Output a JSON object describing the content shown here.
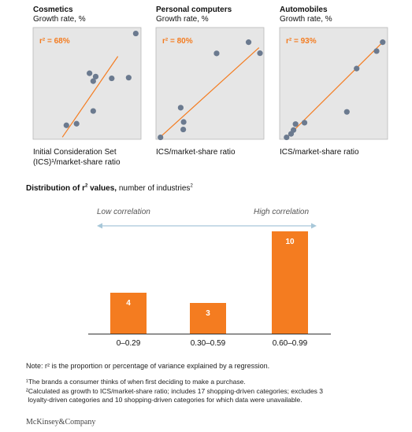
{
  "colors": {
    "accent": "#f47c20",
    "panel_bg": "#e6e6e6",
    "point": "#6b7a8f",
    "bar": "#f47c20",
    "arrow": "#a7c7d9"
  },
  "chart_data": [
    {
      "type": "scatter",
      "title": "Cosmetics",
      "subtitle": "Growth rate, %",
      "xlabel_lines": [
        "Initial Consideration Set",
        "(ICS)¹/market-share ratio"
      ],
      "r2_label": "r² = 68%",
      "points": [
        [
          1.08,
          0.8
        ],
        [
          1.41,
          0.89
        ],
        [
          1.83,
          3.78
        ],
        [
          1.95,
          1.62
        ],
        [
          1.95,
          3.33
        ],
        [
          2.03,
          3.59
        ],
        [
          2.55,
          3.49
        ],
        [
          3.1,
          3.53
        ],
        [
          3.33,
          6.06
        ]
      ],
      "trend": [
        [
          0.95,
          0.12
        ],
        [
          2.75,
          4.75
        ]
      ]
    },
    {
      "type": "scatter",
      "title": "Personal computers",
      "subtitle": "Growth rate, %",
      "xlabel_lines": [
        "ICS/market-share ratio"
      ],
      "r2_label": "r² = 80%",
      "points": [
        [
          0.23,
          0.11
        ],
        [
          1.26,
          1.81
        ],
        [
          1.41,
          0.99
        ],
        [
          1.39,
          0.56
        ],
        [
          3.09,
          4.92
        ],
        [
          4.72,
          5.56
        ],
        [
          5.3,
          4.93
        ]
      ],
      "trend": [
        [
          0.19,
          0.1
        ],
        [
          5.25,
          5.25
        ]
      ]
    },
    {
      "type": "scatter",
      "title": "Automobiles",
      "subtitle": "Growth rate, %",
      "xlabel_lines": [
        "ICS/market-share ratio"
      ],
      "r2_label": "r² = 93%",
      "points": [
        [
          0.17,
          0.11
        ],
        [
          0.28,
          0.31
        ],
        [
          0.34,
          0.53
        ],
        [
          0.39,
          0.87
        ],
        [
          0.61,
          0.95
        ],
        [
          1.65,
          1.57
        ],
        [
          1.89,
          4.05
        ],
        [
          2.38,
          5.05
        ],
        [
          2.53,
          5.56
        ]
      ],
      "trend": [
        [
          0.17,
          0.1
        ],
        [
          2.55,
          5.61
        ]
      ]
    },
    {
      "type": "bar",
      "title": "Distribution of r² values,",
      "title_bold_main": "Distribution of r",
      "title_bold_sup": "2",
      "title_bold_rest": " values,",
      "title_rest": " number of industries",
      "title_sup": "2",
      "categories": [
        "0–0.29",
        "0.30–0.59",
        "0.60–0.99"
      ],
      "values": [
        4,
        3,
        10
      ],
      "ylim": [
        0,
        10
      ],
      "low_label": "Low correlation",
      "high_label": "High correlation"
    }
  ],
  "notes": {
    "note": "Note: r² is the proportion or percentage of variance explained by a regression.",
    "footnote1": "¹The brands a consumer thinks of when first deciding to make a purchase.",
    "footnote2_line1": "²Calculated as growth to ICS/market-share ratio; includes 17 shopping-driven categories; excludes 3",
    "footnote2_line2": " loyalty-driven categories and 10 shopping-driven categories for which data were unavailable.",
    "brand": "McKinsey&Company"
  }
}
